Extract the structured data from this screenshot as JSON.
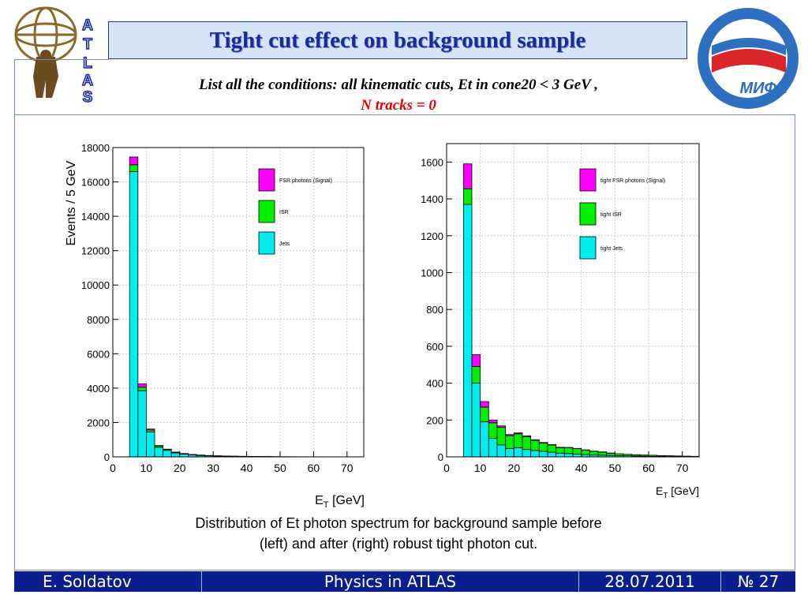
{
  "slide": {
    "title": "Tight cut effect on background sample",
    "subtitle_line1": "List all the conditions: all kinematic cuts, Et in cone20 < 3 GeV ,",
    "subtitle_line2": "N tracks = 0",
    "caption_line1": "Distribution of Et photon spectrum for background sample before",
    "caption_line2": "(left) and after (right) robust tight photon cut.",
    "logo_left_text": "ATLAS",
    "logo_right_text": "МИФИ"
  },
  "footer": {
    "author": "E. Soldatov",
    "talk": "Physics in ATLAS",
    "date": "28.07.2011",
    "number": "№ 27"
  },
  "colors": {
    "signal": "#ff00ff",
    "isr": "#00ee00",
    "jets": "#00eeee",
    "title": "#1a2a9a",
    "footer": "#0b1e8c",
    "highlight": "#e60000"
  },
  "chart_data": [
    {
      "type": "bar",
      "stacked": true,
      "ylabel": "Events / 5 GeV",
      "xlabel_main": "E",
      "xlabel_sub": "T",
      "xlabel_unit": " [GeV]",
      "xlim": [
        0,
        75
      ],
      "ylim": [
        0,
        18000
      ],
      "xticks": [
        0,
        10,
        20,
        30,
        40,
        50,
        60,
        70
      ],
      "yticks": [
        0,
        2000,
        4000,
        6000,
        8000,
        10000,
        12000,
        14000,
        16000,
        18000
      ],
      "bin_edges": [
        5,
        7.5,
        10,
        12.5,
        15,
        17.5,
        20,
        22.5,
        25,
        27.5,
        30,
        32.5,
        35,
        37.5,
        40,
        42.5,
        45,
        47.5,
        50,
        52.5,
        55,
        57.5,
        60,
        62.5,
        65,
        67.5,
        70,
        72.5,
        75
      ],
      "legend_position": "top-right",
      "series": [
        {
          "name": "Jets",
          "color": "#00eeee",
          "values": [
            16600,
            3850,
            1450,
            560,
            380,
            230,
            160,
            110,
            80,
            60,
            45,
            35,
            28,
            22,
            18,
            14,
            11,
            9,
            7,
            6,
            5,
            4,
            3,
            3,
            2,
            2,
            2,
            1
          ]
        },
        {
          "name": "ISR",
          "color": "#00ee00",
          "values": [
            400,
            200,
            110,
            80,
            60,
            40,
            30,
            25,
            20,
            18,
            15,
            12,
            10,
            8,
            7,
            6,
            5,
            4,
            3,
            3,
            2,
            2,
            2,
            1,
            1,
            1,
            1,
            1
          ]
        },
        {
          "name": "FSR photons (Signal)",
          "color": "#ff00ff",
          "values": [
            450,
            200,
            60,
            20,
            10,
            6,
            4,
            3,
            2,
            2,
            1,
            1,
            1,
            1,
            1,
            1,
            1,
            0,
            0,
            0,
            0,
            0,
            0,
            0,
            0,
            0,
            0,
            0
          ]
        }
      ]
    },
    {
      "type": "bar",
      "stacked": true,
      "ylabel": "",
      "xlabel_main": "E",
      "xlabel_sub": "T",
      "xlabel_unit": " [GeV]",
      "xlim": [
        0,
        75
      ],
      "ylim": [
        0,
        1700
      ],
      "xticks": [
        0,
        10,
        20,
        30,
        40,
        50,
        60,
        70
      ],
      "yticks": [
        0,
        200,
        400,
        600,
        800,
        1000,
        1200,
        1400,
        1600
      ],
      "bin_edges": [
        5,
        7.5,
        10,
        12.5,
        15,
        17.5,
        20,
        22.5,
        25,
        27.5,
        30,
        32.5,
        35,
        37.5,
        40,
        42.5,
        45,
        47.5,
        50,
        52.5,
        55,
        57.5,
        60,
        62.5,
        65,
        67.5,
        70,
        72.5,
        75
      ],
      "legend_position": "top-right",
      "series": [
        {
          "name": "tight Jets",
          "color": "#00eeee",
          "values": [
            1370,
            400,
            190,
            100,
            65,
            45,
            50,
            40,
            35,
            30,
            25,
            20,
            18,
            15,
            12,
            10,
            9,
            8,
            7,
            6,
            5,
            4,
            3,
            3,
            2,
            2,
            2,
            1
          ]
        },
        {
          "name": "tight ISR",
          "color": "#00ee00",
          "values": [
            85,
            90,
            80,
            85,
            95,
            70,
            75,
            70,
            55,
            45,
            40,
            30,
            32,
            30,
            25,
            20,
            17,
            12,
            10,
            8,
            7,
            6,
            6,
            4,
            4,
            3,
            2,
            2
          ]
        },
        {
          "name": "tight FSR photons (Signal)",
          "color": "#ff00ff",
          "values": [
            135,
            65,
            30,
            15,
            8,
            6,
            5,
            4,
            3,
            3,
            2,
            2,
            1,
            1,
            1,
            1,
            1,
            1,
            0,
            0,
            0,
            0,
            0,
            0,
            0,
            0,
            0,
            0
          ]
        }
      ]
    }
  ]
}
